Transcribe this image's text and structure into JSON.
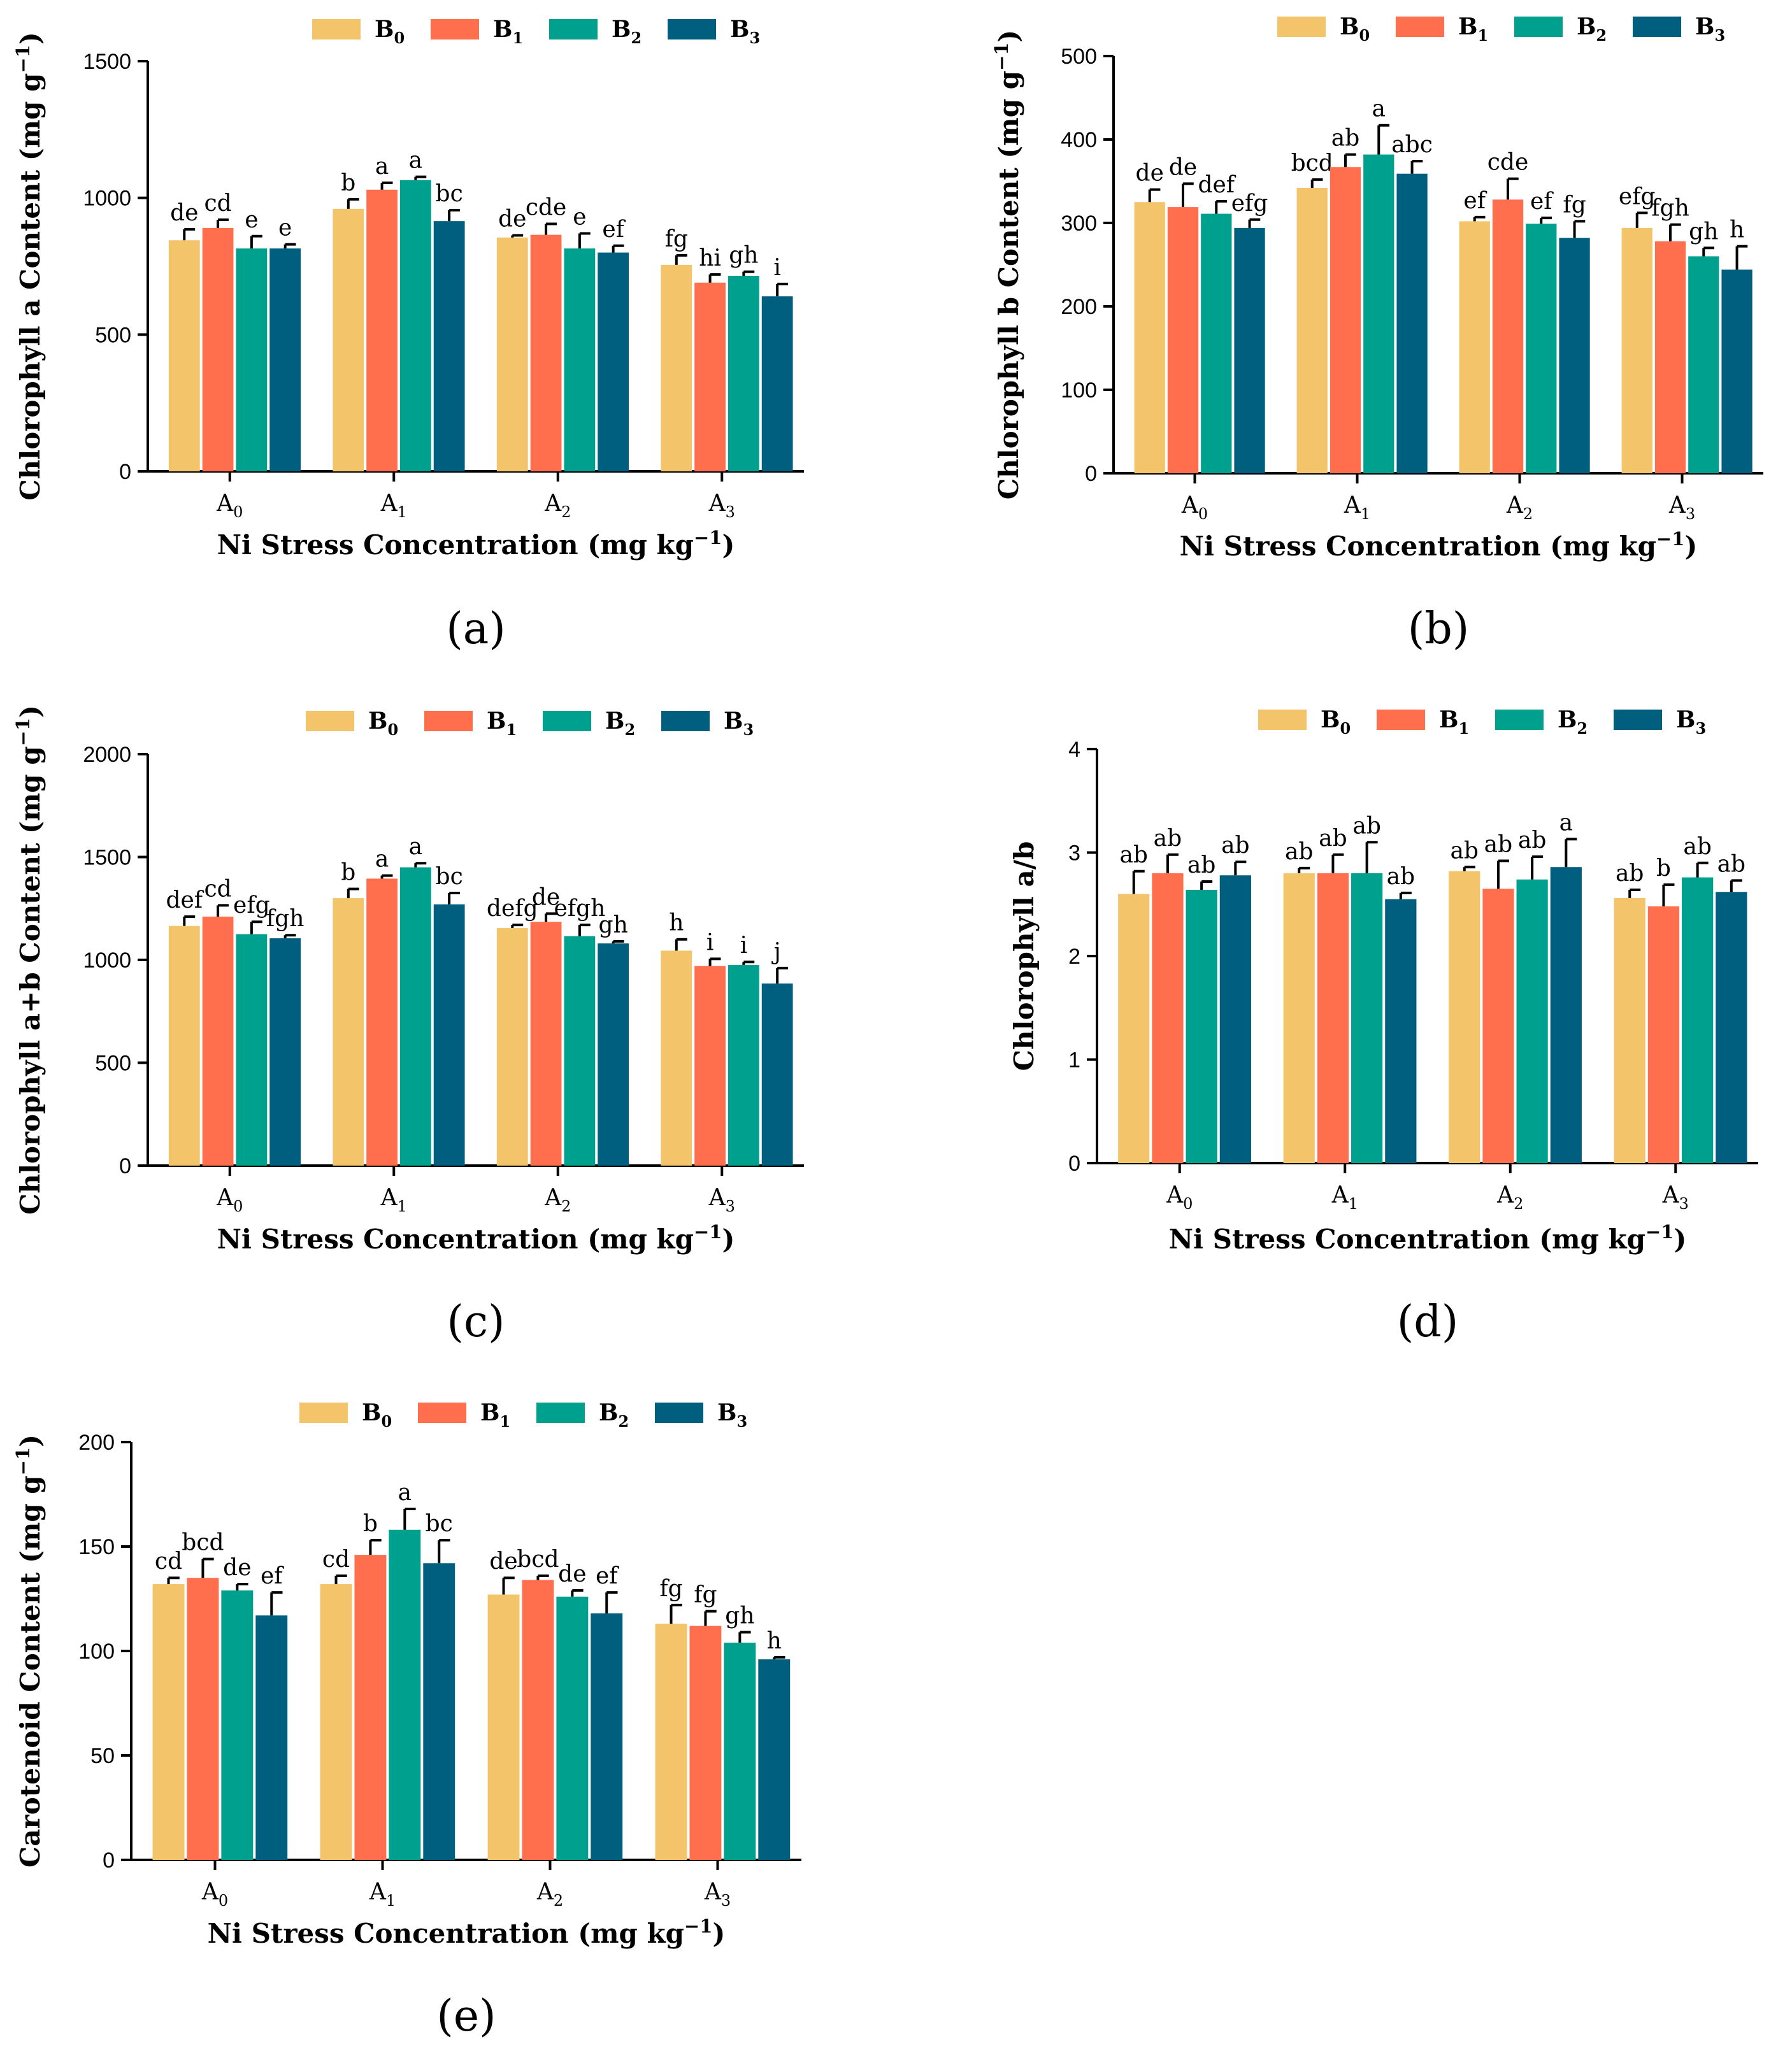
{
  "colors": {
    "B0": "#F4C46A",
    "B1": "#FF6F4E",
    "B2": "#00A08E",
    "B3": "#005F7F"
  },
  "chart_data": [
    {
      "type": "bar",
      "panel_label": "(a)",
      "ylabel": "Chlorophyll a Content (mg g-1)",
      "xlabel": "Ni Stress Concentration (mg kg-1)",
      "ylim": [
        0,
        1500
      ],
      "yticks": [
        "0",
        "500",
        "1000",
        "1500"
      ],
      "categories": [
        "A0",
        "A1",
        "A2",
        "A3"
      ],
      "series": [
        {
          "name": "B0",
          "values": [
            845,
            960,
            855,
            755
          ],
          "errors": [
            40,
            35,
            8,
            35
          ],
          "letters": [
            "de",
            "b",
            "de",
            "fg"
          ]
        },
        {
          "name": "B1",
          "values": [
            890,
            1030,
            865,
            690
          ],
          "errors": [
            30,
            25,
            40,
            30
          ],
          "letters": [
            "cd",
            "a",
            "cde",
            "hi"
          ]
        },
        {
          "name": "B2",
          "values": [
            815,
            1065,
            815,
            715
          ],
          "errors": [
            45,
            12,
            55,
            15
          ],
          "letters": [
            "e",
            "a",
            "e",
            "gh"
          ]
        },
        {
          "name": "B3",
          "values": [
            815,
            915,
            800,
            640
          ],
          "errors": [
            15,
            40,
            25,
            45
          ],
          "letters": [
            "e",
            "bc",
            "ef",
            "i"
          ]
        }
      ]
    },
    {
      "type": "bar",
      "panel_label": "(b)",
      "ylabel": "Chlorophyll b Content (mg g-1)",
      "xlabel": "Ni Stress Concentration (mg kg-1)",
      "ylim": [
        0,
        500
      ],
      "yticks": [
        "0",
        "100",
        "200",
        "300",
        "400",
        "500"
      ],
      "categories": [
        "A0",
        "A1",
        "A2",
        "A3"
      ],
      "series": [
        {
          "name": "B0",
          "values": [
            325,
            342,
            302,
            294
          ],
          "errors": [
            15,
            10,
            5,
            18
          ],
          "letters": [
            "de",
            "bcd",
            "ef",
            "efg"
          ]
        },
        {
          "name": "B1",
          "values": [
            319,
            367,
            328,
            278
          ],
          "errors": [
            28,
            15,
            25,
            20
          ],
          "letters": [
            "de",
            "ab",
            "cde",
            "fgh"
          ]
        },
        {
          "name": "B2",
          "values": [
            311,
            382,
            299,
            260
          ],
          "errors": [
            15,
            35,
            7,
            10
          ],
          "letters": [
            "def",
            "a",
            "ef",
            "gh"
          ]
        },
        {
          "name": "B3",
          "values": [
            294,
            359,
            282,
            244
          ],
          "errors": [
            10,
            15,
            20,
            28
          ],
          "letters": [
            "efg",
            "abc",
            "fg",
            "h"
          ]
        }
      ]
    },
    {
      "type": "bar",
      "panel_label": "(c)",
      "ylabel": "Chlorophyll a+b Content (mg g-1)",
      "xlabel": "Ni Stress Concentration (mg kg-1)",
      "ylim": [
        0,
        2000
      ],
      "yticks": [
        "0",
        "500",
        "1000",
        "1500",
        "2000"
      ],
      "categories": [
        "A0",
        "A1",
        "A2",
        "A3"
      ],
      "series": [
        {
          "name": "B0",
          "values": [
            1165,
            1300,
            1155,
            1045
          ],
          "errors": [
            45,
            45,
            15,
            55
          ],
          "letters": [
            "def",
            "b",
            "defg",
            "h"
          ]
        },
        {
          "name": "B1",
          "values": [
            1210,
            1395,
            1185,
            970
          ],
          "errors": [
            55,
            15,
            40,
            35
          ],
          "letters": [
            "cd",
            "a",
            "de",
            "i"
          ]
        },
        {
          "name": "B2",
          "values": [
            1125,
            1450,
            1115,
            975
          ],
          "errors": [
            60,
            20,
            55,
            15
          ],
          "letters": [
            "efg",
            "a",
            "efgh",
            "i"
          ]
        },
        {
          "name": "B3",
          "values": [
            1105,
            1270,
            1080,
            885
          ],
          "errors": [
            15,
            55,
            10,
            75
          ],
          "letters": [
            "fgh",
            "bc",
            "gh",
            "j"
          ]
        }
      ]
    },
    {
      "type": "bar",
      "panel_label": "(d)",
      "ylabel": "Chlorophyll a/b",
      "xlabel": "Ni Stress Concentration (mg kg-1)",
      "ylim": [
        0,
        4
      ],
      "yticks": [
        "0",
        "1",
        "2",
        "3",
        "4"
      ],
      "categories": [
        "A0",
        "A1",
        "A2",
        "A3"
      ],
      "series": [
        {
          "name": "B0",
          "values": [
            2.6,
            2.8,
            2.82,
            2.56
          ],
          "errors": [
            0.22,
            0.05,
            0.04,
            0.08
          ],
          "letters": [
            "ab",
            "ab",
            "ab",
            "ab"
          ]
        },
        {
          "name": "B1",
          "values": [
            2.8,
            2.8,
            2.65,
            2.48
          ],
          "errors": [
            0.18,
            0.18,
            0.27,
            0.21
          ],
          "letters": [
            "ab",
            "ab",
            "ab",
            "b"
          ]
        },
        {
          "name": "B2",
          "values": [
            2.64,
            2.8,
            2.74,
            2.76
          ],
          "errors": [
            0.08,
            0.3,
            0.22,
            0.14
          ],
          "letters": [
            "ab",
            "ab",
            "ab",
            "ab"
          ]
        },
        {
          "name": "B3",
          "values": [
            2.78,
            2.55,
            2.86,
            2.62
          ],
          "errors": [
            0.13,
            0.06,
            0.27,
            0.11
          ],
          "letters": [
            "ab",
            "ab",
            "a",
            "ab"
          ]
        }
      ]
    },
    {
      "type": "bar",
      "panel_label": "(e)",
      "ylabel": "Carotenoid Content (mg g-1)",
      "xlabel": "Ni Stress Concentration (mg kg-1)",
      "ylim": [
        0,
        200
      ],
      "yticks": [
        "0",
        "50",
        "100",
        "150",
        "200"
      ],
      "categories": [
        "A0",
        "A1",
        "A2",
        "A3"
      ],
      "series": [
        {
          "name": "B0",
          "values": [
            132,
            132,
            127,
            113
          ],
          "errors": [
            3,
            4,
            8,
            9
          ],
          "letters": [
            "cd",
            "cd",
            "de",
            "fg"
          ]
        },
        {
          "name": "B1",
          "values": [
            135,
            146,
            134,
            112
          ],
          "errors": [
            9,
            7,
            2,
            7
          ],
          "letters": [
            "bcd",
            "b",
            "bcd",
            "fg"
          ]
        },
        {
          "name": "B2",
          "values": [
            129,
            158,
            126,
            104
          ],
          "errors": [
            3,
            10,
            3,
            5
          ],
          "letters": [
            "de",
            "a",
            "de",
            "gh"
          ]
        },
        {
          "name": "B3",
          "values": [
            117,
            142,
            118,
            96
          ],
          "errors": [
            11,
            11,
            10,
            1
          ],
          "letters": [
            "ef",
            "bc",
            "ef",
            "h"
          ]
        }
      ]
    }
  ]
}
